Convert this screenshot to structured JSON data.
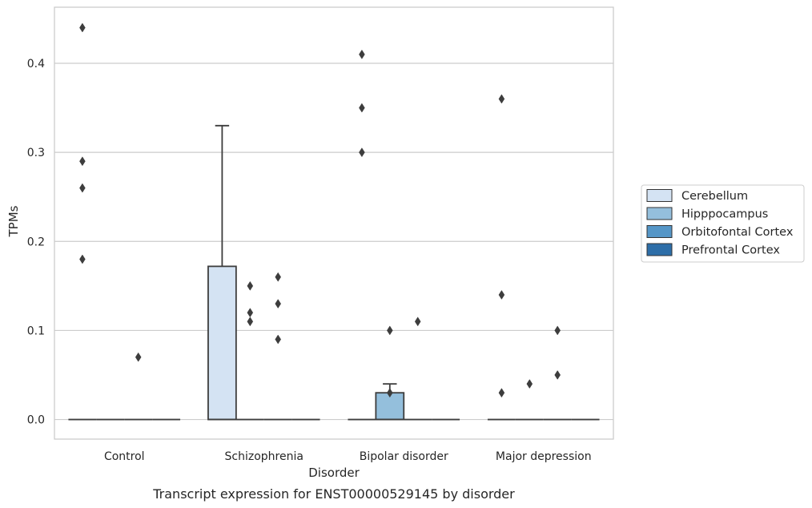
{
  "chart_data": {
    "type": "box",
    "title": "",
    "caption": "Transcript expression for ENST00000529145 by disorder",
    "xlabel": "Disorder",
    "ylabel": "TPMs",
    "ylim": [
      -0.022,
      0.463
    ],
    "yticks": [
      0.0,
      0.1,
      0.2,
      0.3,
      0.4
    ],
    "ytick_labels": [
      "0.0",
      "0.1",
      "0.2",
      "0.3",
      "0.4"
    ],
    "grid": "horizontal",
    "legend_position": "right",
    "categories": [
      "Control",
      "Schizophrenia",
      "Bipolar disorder",
      "Major depression"
    ],
    "series": [
      {
        "name": "Cerebellum",
        "color": "#d4e3f3",
        "boxes": [
          {
            "category": "Control",
            "q1": 0,
            "median": 0,
            "q3": 0,
            "whisker_low": 0,
            "whisker_high": 0,
            "outliers": [
              0.44,
              0.29,
              0.26,
              0.18
            ]
          },
          {
            "category": "Schizophrenia",
            "q1": 0,
            "median": 0,
            "q3": 0.172,
            "whisker_low": 0,
            "whisker_high": 0.33,
            "outliers": []
          },
          {
            "category": "Bipolar disorder",
            "q1": 0,
            "median": 0,
            "q3": 0,
            "whisker_low": 0,
            "whisker_high": 0,
            "outliers": [
              0.41,
              0.35,
              0.3
            ]
          },
          {
            "category": "Major depression",
            "q1": 0,
            "median": 0,
            "q3": 0,
            "whisker_low": 0,
            "whisker_high": 0,
            "outliers": [
              0.36,
              0.14,
              0.03
            ]
          }
        ]
      },
      {
        "name": "Hipppocampus",
        "color": "#94bfdc",
        "boxes": [
          {
            "category": "Control",
            "q1": 0,
            "median": 0,
            "q3": 0,
            "whisker_low": 0,
            "whisker_high": 0,
            "outliers": []
          },
          {
            "category": "Schizophrenia",
            "q1": 0,
            "median": 0,
            "q3": 0,
            "whisker_low": 0,
            "whisker_high": 0,
            "outliers": [
              0.15,
              0.12,
              0.11
            ]
          },
          {
            "category": "Bipolar disorder",
            "q1": 0,
            "median": 0,
            "q3": 0.03,
            "whisker_low": 0,
            "whisker_high": 0.04,
            "outliers": [
              0.1,
              0.03
            ]
          },
          {
            "category": "Major depression",
            "q1": 0,
            "median": 0,
            "q3": 0,
            "whisker_low": 0,
            "whisker_high": 0,
            "outliers": [
              0.04
            ]
          }
        ]
      },
      {
        "name": "Orbitofontal Cortex",
        "color": "#5596c7",
        "boxes": [
          {
            "category": "Control",
            "q1": 0,
            "median": 0,
            "q3": 0,
            "whisker_low": 0,
            "whisker_high": 0,
            "outliers": [
              0.07
            ]
          },
          {
            "category": "Schizophrenia",
            "q1": 0,
            "median": 0,
            "q3": 0,
            "whisker_low": 0,
            "whisker_high": 0,
            "outliers": [
              0.16,
              0.13,
              0.09
            ]
          },
          {
            "category": "Bipolar disorder",
            "q1": 0,
            "median": 0,
            "q3": 0,
            "whisker_low": 0,
            "whisker_high": 0,
            "outliers": [
              0.11
            ]
          },
          {
            "category": "Major depression",
            "q1": 0,
            "median": 0,
            "q3": 0,
            "whisker_low": 0,
            "whisker_high": 0,
            "outliers": [
              0.1,
              0.05
            ]
          }
        ]
      },
      {
        "name": "Prefrontal Cortex",
        "color": "#2d6ea8",
        "boxes": [
          {
            "category": "Control",
            "q1": 0,
            "median": 0,
            "q3": 0,
            "whisker_low": 0,
            "whisker_high": 0,
            "outliers": []
          },
          {
            "category": "Schizophrenia",
            "q1": 0,
            "median": 0,
            "q3": 0,
            "whisker_low": 0,
            "whisker_high": 0,
            "outliers": []
          },
          {
            "category": "Bipolar disorder",
            "q1": 0,
            "median": 0,
            "q3": 0,
            "whisker_low": 0,
            "whisker_high": 0,
            "outliers": []
          },
          {
            "category": "Major depression",
            "q1": 0,
            "median": 0,
            "q3": 0,
            "whisker_low": 0,
            "whisker_high": 0,
            "outliers": []
          }
        ]
      }
    ]
  }
}
